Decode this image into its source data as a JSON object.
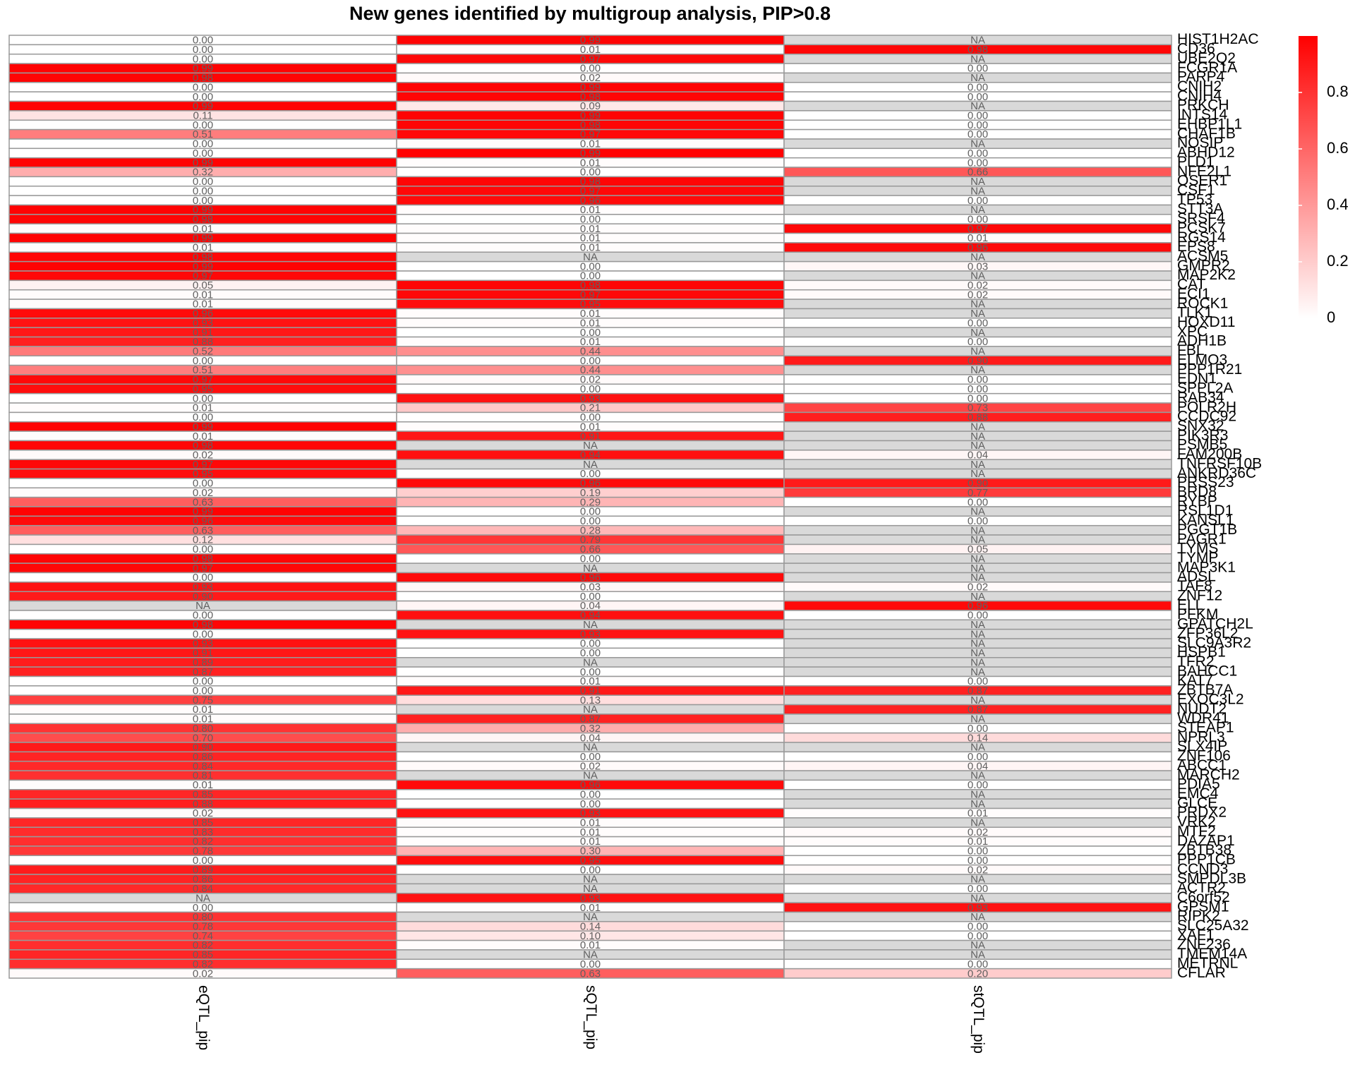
{
  "chart_data": {
    "type": "heatmap",
    "title": "New genes identified by multigroup analysis, PIP>0.8",
    "categories": [
      "HIST1H2AC",
      "CD36",
      "UBE2Q2",
      "FCGR1A",
      "PARP4",
      "CNIH2",
      "CNIH4",
      "PRKCH",
      "INTS14",
      "EHBP1L1",
      "CHAF1B",
      "NOSIP",
      "ABHD12",
      "PLD1",
      "NFE2L1",
      "OSER1",
      "CSF1",
      "TP53",
      "STT3A",
      "SRSF4",
      "PCSK7",
      "RGS14",
      "EPS8",
      "ACSM5",
      "GMPR2",
      "MAP2K2",
      "CAT",
      "ECI1",
      "ROCK1",
      "TLK1",
      "HOXD11",
      "XPC",
      "ADH1B",
      "FBL",
      "ELMO3",
      "PPP1R21",
      "EDN1",
      "SPPL2A",
      "RAB34",
      "POLR2H",
      "CCDC92",
      "SNX32",
      "PIK3R3",
      "PSMB5",
      "FAM200B",
      "TNFRSF10B",
      "ANKRD36C",
      "PRSS23",
      "BRD8",
      "RYBP",
      "RSL1D1",
      "KANSL1",
      "PGGT1B",
      "PAGR1",
      "TYMS",
      "TYMP",
      "MAP3K1",
      "ADSL",
      "TAF8",
      "ZNF12",
      "ELL",
      "PFKM",
      "GPATCH2L",
      "ZFP36L2",
      "SLC9A3R2",
      "HSPB1",
      "TFR2",
      "BAHCC1",
      "KAT7",
      "ZBTB7A",
      "EXOC3L2",
      "NUDT2",
      "WDR41",
      "STEAP1",
      "NPRL3",
      "SLX4IP",
      "ZNF106",
      "ABCC1",
      "MARCH2",
      "PDIA5",
      "EMC4",
      "GLCE",
      "PRDX2",
      "VRK2",
      "MTF2",
      "DAZAP1",
      "ZBTB38",
      "PPP1CB",
      "CCND3",
      "SMPDL3B",
      "ACTR2",
      "C6orf52",
      "GPSM1",
      "RIPK2",
      "SLC25A32",
      "XAF1",
      "ZNF236",
      "TMEM14A",
      "METRNL",
      "CFLAR"
    ],
    "series": [
      {
        "name": "eQTL_pip",
        "values": [
          0,
          0,
          0,
          0.99,
          0.98,
          0,
          0,
          0.99,
          0.11,
          0,
          0.51,
          0,
          0,
          0.99,
          0.32,
          0,
          0,
          0,
          0.99,
          0.98,
          0.01,
          0.99,
          0.01,
          0.98,
          0.99,
          0.97,
          0.05,
          0.01,
          0.01,
          0.96,
          0.93,
          0.91,
          0.88,
          0.52,
          0,
          0.51,
          0.97,
          0.95,
          0,
          0.01,
          0,
          0.99,
          0.01,
          0.98,
          0.02,
          0.97,
          0.95,
          0,
          0.02,
          0.63,
          0.99,
          0.96,
          0.63,
          0.12,
          0,
          0.98,
          0.97,
          0,
          0.93,
          0.9,
          null,
          0,
          0.98,
          0,
          0.93,
          0.91,
          0.89,
          0.87,
          0,
          0,
          0.75,
          0.01,
          0.01,
          0.8,
          0.7,
          0.9,
          0.86,
          0.84,
          0.81,
          0.01,
          0.85,
          0.88,
          0.02,
          0.85,
          0.83,
          0.82,
          0.78,
          0,
          0.89,
          0.86,
          0.84,
          null,
          0,
          0.8,
          0.78,
          0.74,
          0.82,
          0.85,
          0.82,
          0.02
        ],
        "value_labels": [
          "0.00",
          "0.00",
          "0.00",
          "0.99",
          "0.98",
          "0.00",
          "0.00",
          "0.99",
          "0.11",
          "0.00",
          "0.51",
          "0.00",
          "0.00",
          "0.99",
          "0.32",
          "0.00",
          "0.00",
          "0.00",
          "0.99",
          "0.98",
          "0.01",
          "0.99",
          "0.01",
          "0.98",
          "0.99",
          "0.97",
          "0.05",
          "0.01",
          "0.01",
          "0.96",
          "0.93",
          "0.91",
          "0.88",
          "0.52",
          "0.00",
          "0.51",
          "0.97",
          "0.95",
          "0.00",
          "0.01",
          "0.00",
          "0.99",
          "0.01",
          "0.98",
          "0.02",
          "0.97",
          "0.95",
          "0.00",
          "0.02",
          "0.63",
          "0.99",
          "0.96",
          "0.63",
          "0.12",
          "0.00",
          "0.98",
          "0.97",
          "0.00",
          "0.93",
          "0.90",
          "NA",
          "0.00",
          "0.98",
          "0.00",
          "0.93",
          "0.91",
          "0.89",
          "0.87",
          "0.00",
          "0.00",
          "0.75",
          "0.01",
          "0.01",
          "0.80",
          "0.70",
          "0.90",
          "0.86",
          "0.84",
          "0.81",
          "0.01",
          "0.85",
          "0.88",
          "0.02",
          "0.85",
          "0.83",
          "0.82",
          "0.78",
          "0.00",
          "0.89",
          "0.86",
          "0.84",
          "NA",
          "0.00",
          "0.80",
          "0.78",
          "0.74",
          "0.82",
          "0.85",
          "0.82",
          "0.02"
        ]
      },
      {
        "name": "sQTL_pip",
        "values": [
          0.99,
          0.01,
          0.97,
          0,
          0.02,
          0.99,
          0.98,
          0.09,
          0.99,
          0.98,
          0.97,
          0.01,
          0.99,
          0.01,
          0,
          0.98,
          0.97,
          0.96,
          0.01,
          0,
          0.01,
          0.01,
          0.01,
          null,
          0,
          0,
          0.98,
          0.97,
          0.95,
          0.01,
          0.01,
          0,
          0.01,
          0.44,
          0,
          0.44,
          0.02,
          0,
          0.93,
          0.21,
          0,
          0.01,
          0.91,
          null,
          0.94,
          null,
          0,
          0.96,
          0.19,
          0.29,
          0,
          0,
          0.28,
          0.79,
          0.66,
          0,
          null,
          0.96,
          0.03,
          0,
          0.04,
          0.94,
          null,
          0.93,
          0,
          0,
          null,
          0,
          0.01,
          0.91,
          0.13,
          null,
          0.87,
          0.32,
          0.04,
          null,
          0,
          0.02,
          null,
          0.96,
          0,
          0,
          0.93,
          0.01,
          0.01,
          0.01,
          0.3,
          0.95,
          0,
          null,
          null,
          0.93,
          0.01,
          null,
          0.14,
          0.1,
          0.01,
          null,
          0,
          0.63
        ],
        "value_labels": [
          "0.99",
          "0.01",
          "0.97",
          "0.00",
          "0.02",
          "0.99",
          "0.98",
          "0.09",
          "0.99",
          "0.98",
          "0.97",
          "0.01",
          "0.99",
          "0.01",
          "0.00",
          "0.98",
          "0.97",
          "0.96",
          "0.01",
          "0.00",
          "0.01",
          "0.01",
          "0.01",
          "NA",
          "0.00",
          "0.00",
          "0.98",
          "0.97",
          "0.95",
          "0.01",
          "0.01",
          "0.00",
          "0.01",
          "0.44",
          "0.00",
          "0.44",
          "0.02",
          "0.00",
          "0.93",
          "0.21",
          "0.00",
          "0.01",
          "0.91",
          "NA",
          "0.94",
          "NA",
          "0.00",
          "0.96",
          "0.19",
          "0.29",
          "0.00",
          "0.00",
          "0.28",
          "0.79",
          "0.66",
          "0.00",
          "NA",
          "0.96",
          "0.03",
          "0.00",
          "0.04",
          "0.94",
          "NA",
          "0.93",
          "0.00",
          "0.00",
          "NA",
          "0.00",
          "0.01",
          "0.91",
          "0.13",
          "NA",
          "0.87",
          "0.32",
          "0.04",
          "NA",
          "0.00",
          "0.02",
          "NA",
          "0.96",
          "0.00",
          "0.00",
          "0.93",
          "0.01",
          "0.01",
          "0.01",
          "0.30",
          "0.95",
          "0.00",
          "NA",
          "NA",
          "0.93",
          "0.01",
          "NA",
          "0.14",
          "0.10",
          "0.01",
          "NA",
          "0.00",
          "0.63"
        ]
      },
      {
        "name": "stQTL_pip",
        "values": [
          null,
          0.98,
          null,
          0,
          null,
          0,
          0,
          null,
          0,
          0,
          0,
          null,
          0,
          0,
          0.66,
          null,
          null,
          0,
          null,
          0,
          0.97,
          0.01,
          0.96,
          null,
          0.03,
          null,
          0.02,
          0.02,
          null,
          null,
          0,
          null,
          0,
          null,
          0.9,
          null,
          0,
          0,
          0,
          0.73,
          0.88,
          null,
          null,
          null,
          0.04,
          null,
          null,
          0.9,
          0.77,
          0,
          null,
          0,
          null,
          null,
          0.05,
          null,
          null,
          null,
          0.02,
          null,
          0.96,
          0,
          null,
          null,
          null,
          null,
          null,
          null,
          0,
          0.87,
          null,
          0.87,
          null,
          0,
          0.14,
          null,
          0,
          0.04,
          null,
          0,
          null,
          null,
          0.01,
          null,
          0.02,
          0.01,
          0,
          0,
          0.02,
          null,
          0,
          null,
          0.93,
          null,
          0,
          0,
          null,
          null,
          0,
          0.2
        ],
        "value_labels": [
          "NA",
          "0.98",
          "NA",
          "0.00",
          "NA",
          "0.00",
          "0.00",
          "NA",
          "0.00",
          "0.00",
          "0.00",
          "NA",
          "0.00",
          "0.00",
          "0.66",
          "NA",
          "NA",
          "0.00",
          "NA",
          "0.00",
          "0.97",
          "0.01",
          "0.96",
          "NA",
          "0.03",
          "NA",
          "0.02",
          "0.02",
          "NA",
          "NA",
          "0.00",
          "NA",
          "0.00",
          "NA",
          "0.90",
          "NA",
          "0.00",
          "0.00",
          "0.00",
          "0.73",
          "0.88",
          "NA",
          "NA",
          "NA",
          "0.04",
          "NA",
          "NA",
          "0.90",
          "0.77",
          "0.00",
          "NA",
          "0.00",
          "NA",
          "NA",
          "0.05",
          "NA",
          "NA",
          "NA",
          "0.02",
          "NA",
          "0.96",
          "0.00",
          "NA",
          "NA",
          "NA",
          "NA",
          "NA",
          "NA",
          "0.00",
          "0.87",
          "NA",
          "0.87",
          "NA",
          "0.00",
          "0.14",
          "NA",
          "0.00",
          "0.04",
          "NA",
          "0.00",
          "NA",
          "NA",
          "0.01",
          "NA",
          "0.02",
          "0.01",
          "0.00",
          "0.00",
          "0.02",
          "NA",
          "0.00",
          "NA",
          "0.93",
          "NA",
          "0.00",
          "0.00",
          "NA",
          "NA",
          "0.00",
          "0.20"
        ]
      }
    ],
    "clim": [
      0,
      1
    ],
    "colorbar_ticks": [
      0,
      0.2,
      0.4,
      0.6,
      0.8
    ],
    "low_color": "#ffffff",
    "high_color": "#ff0000",
    "na_color": "#d9d9d9"
  }
}
